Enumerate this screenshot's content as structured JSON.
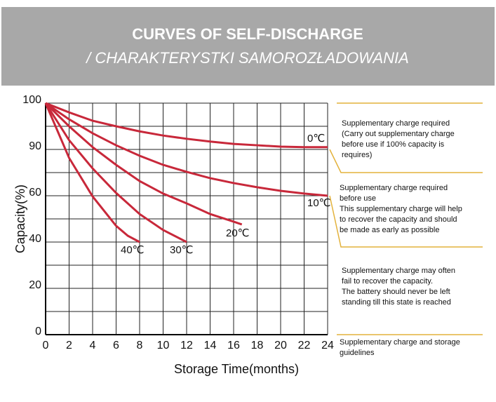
{
  "chart_data": {
    "type": "line",
    "title": "CURVES OF SELF-DISCHARGE",
    "subtitle": "/ CHARAKTERYSTKI SAMOROZŁADOWANIA",
    "x_label": "Storage  Time(months)",
    "y_label": "Capacity(%)",
    "xlim": [
      0,
      24
    ],
    "xticks": [
      0,
      2,
      4,
      6,
      8,
      10,
      12,
      14,
      16,
      18,
      20,
      22,
      24
    ],
    "yticks": [
      0,
      20,
      40,
      60,
      90,
      100
    ],
    "grid": true,
    "series": [
      {
        "name": "0℃",
        "color": "#c8283a",
        "x": [
          0,
          2,
          4,
          6,
          8,
          10,
          12,
          14,
          16,
          18,
          20,
          22,
          24
        ],
        "values": [
          100,
          98.0,
          96.2,
          95.0,
          93.9,
          93.0,
          92.3,
          91.7,
          91.2,
          90.9,
          90.6,
          90.5,
          90.5
        ]
      },
      {
        "name": "10℃",
        "color": "#c8283a",
        "x": [
          0,
          2,
          4,
          6,
          8,
          10,
          12,
          14,
          16,
          18,
          20,
          22,
          24
        ],
        "values": [
          100,
          96.5,
          93.5,
          90.9,
          85.9,
          80,
          75.5,
          71.4,
          68.2,
          65.5,
          63.2,
          61.4,
          60
        ]
      },
      {
        "name": "20℃",
        "color": "#c8283a",
        "x": [
          0,
          2,
          4,
          6,
          8,
          10,
          12,
          14,
          16,
          16.7
        ],
        "values": [
          100,
          95,
          90.5,
          80,
          69.5,
          61.4,
          56.7,
          52.1,
          48.8,
          47.6
        ]
      },
      {
        "name": "30℃",
        "color": "#c8283a",
        "x": [
          0,
          2,
          4,
          6,
          8,
          10,
          12
        ],
        "values": [
          100,
          92,
          77.7,
          61.8,
          52.1,
          45.2,
          40
        ]
      },
      {
        "name": "40℃",
        "color": "#c8283a",
        "x": [
          0,
          2,
          4,
          6,
          7,
          8
        ],
        "values": [
          100,
          84.5,
          59.7,
          47,
          42.7,
          40
        ]
      }
    ],
    "annotations": [
      [
        "Supplementary charge required",
        "(Carry out supplementary charge",
        "before use if 100% capacity is",
        "requires)"
      ],
      [
        "Supplementary charge required",
        "before use",
        "This supplementary charge will help",
        "to recover the capacity and should",
        "be made as early as possible"
      ],
      [
        "Supplementary charge may often",
        "fail to recover the capacity.",
        "The battery should never be left",
        "standing till this state is reached"
      ],
      [
        "Supplementary charge and storage",
        "guidelines"
      ]
    ]
  }
}
